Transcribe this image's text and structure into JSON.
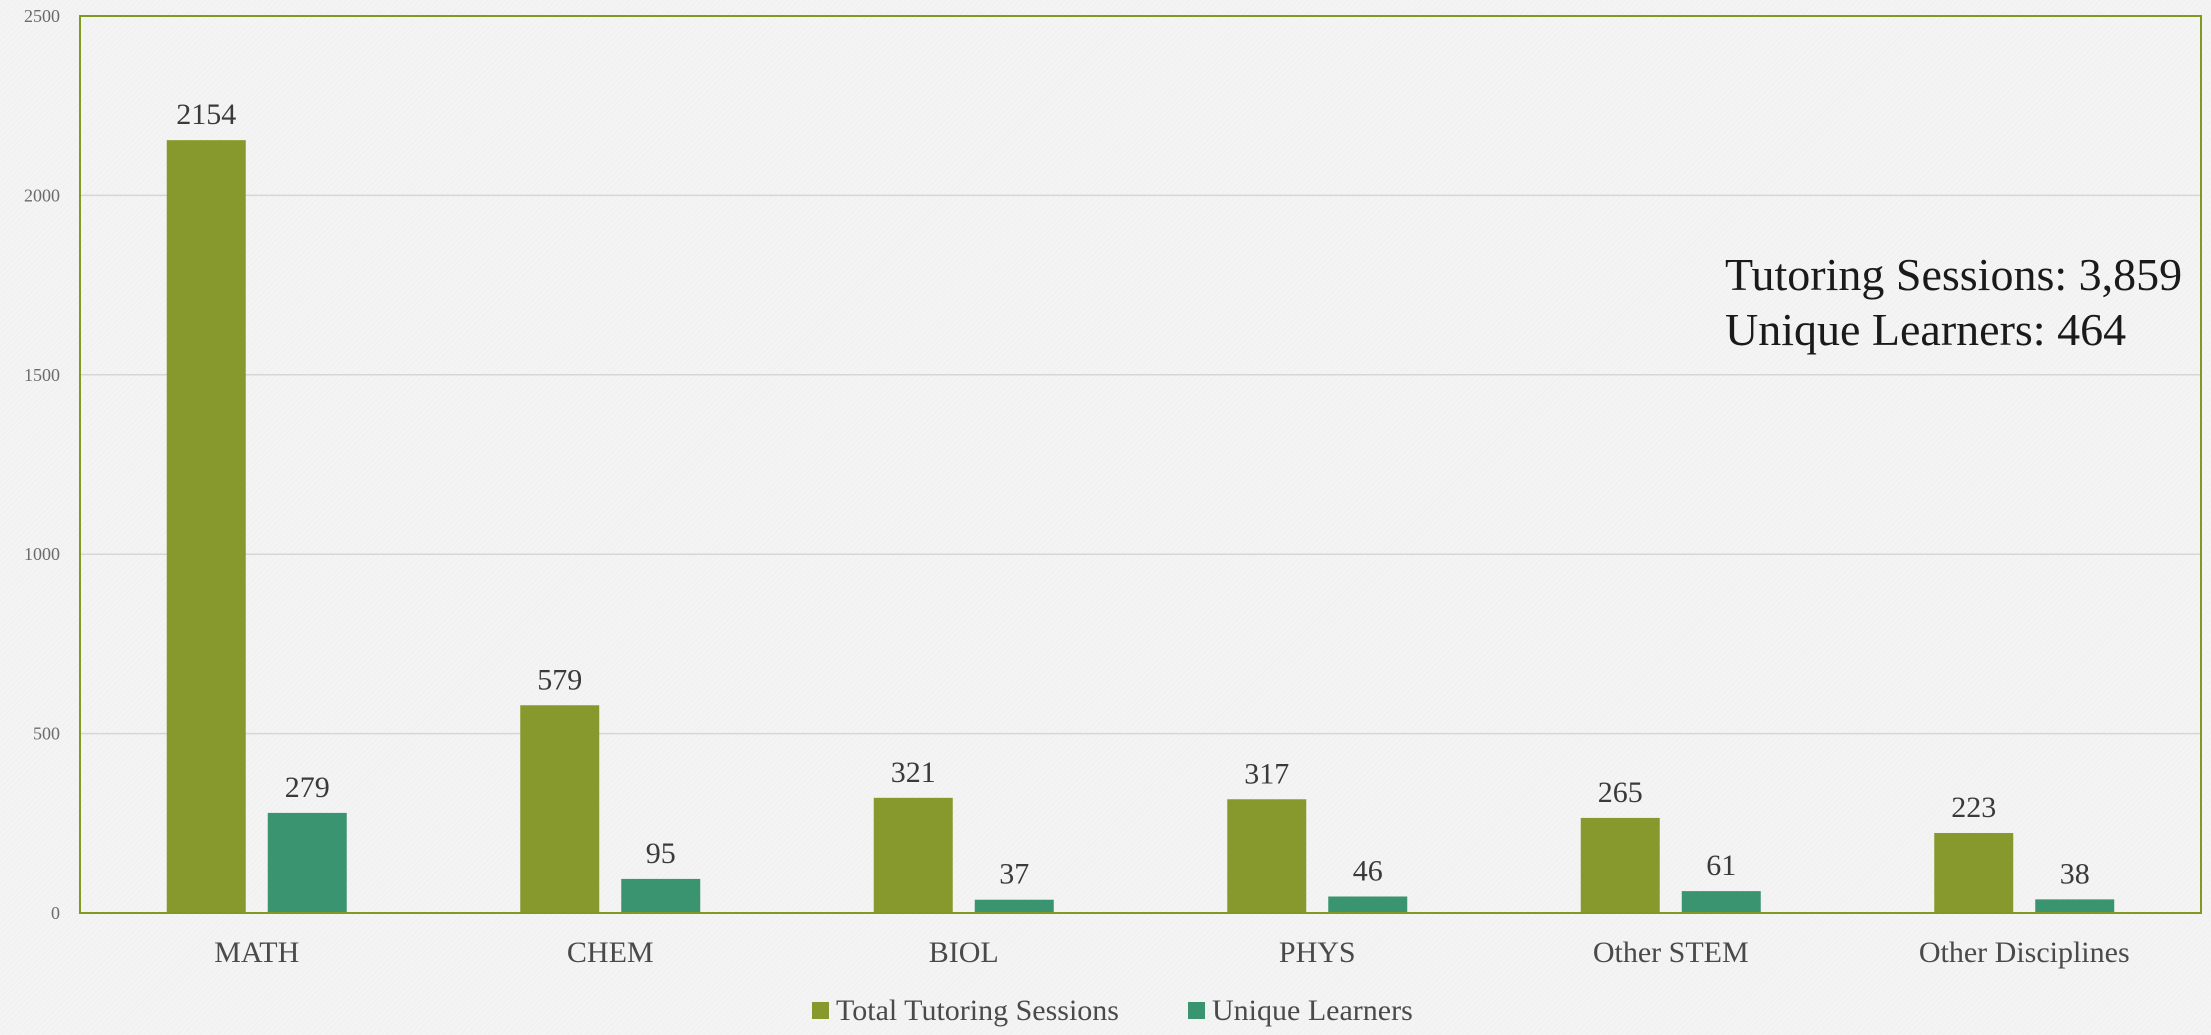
{
  "chart_data": {
    "type": "bar",
    "categories": [
      "MATH",
      "CHEM",
      "BIOL",
      "PHYS",
      "Other STEM",
      "Other Disciplines"
    ],
    "series": [
      {
        "name": "Total Tutoring Sessions",
        "values": [
          2154,
          579,
          321,
          317,
          265,
          223
        ],
        "color": "#87992c"
      },
      {
        "name": "Unique Learners",
        "values": [
          279,
          95,
          37,
          46,
          61,
          38
        ],
        "color": "#3b9470"
      }
    ],
    "ylim": [
      0,
      2500
    ],
    "yticks": [
      0,
      500,
      1000,
      1500,
      2000,
      2500
    ],
    "grid": true,
    "legend_position": "bottom",
    "annotations": [
      "Tutoring Sessions: 3,859",
      "Unique Learners: 464"
    ],
    "title": "",
    "xlabel": "",
    "ylabel": ""
  },
  "colors": {
    "frame": "#7f9a1f",
    "gridline": "#d6d6d6"
  }
}
